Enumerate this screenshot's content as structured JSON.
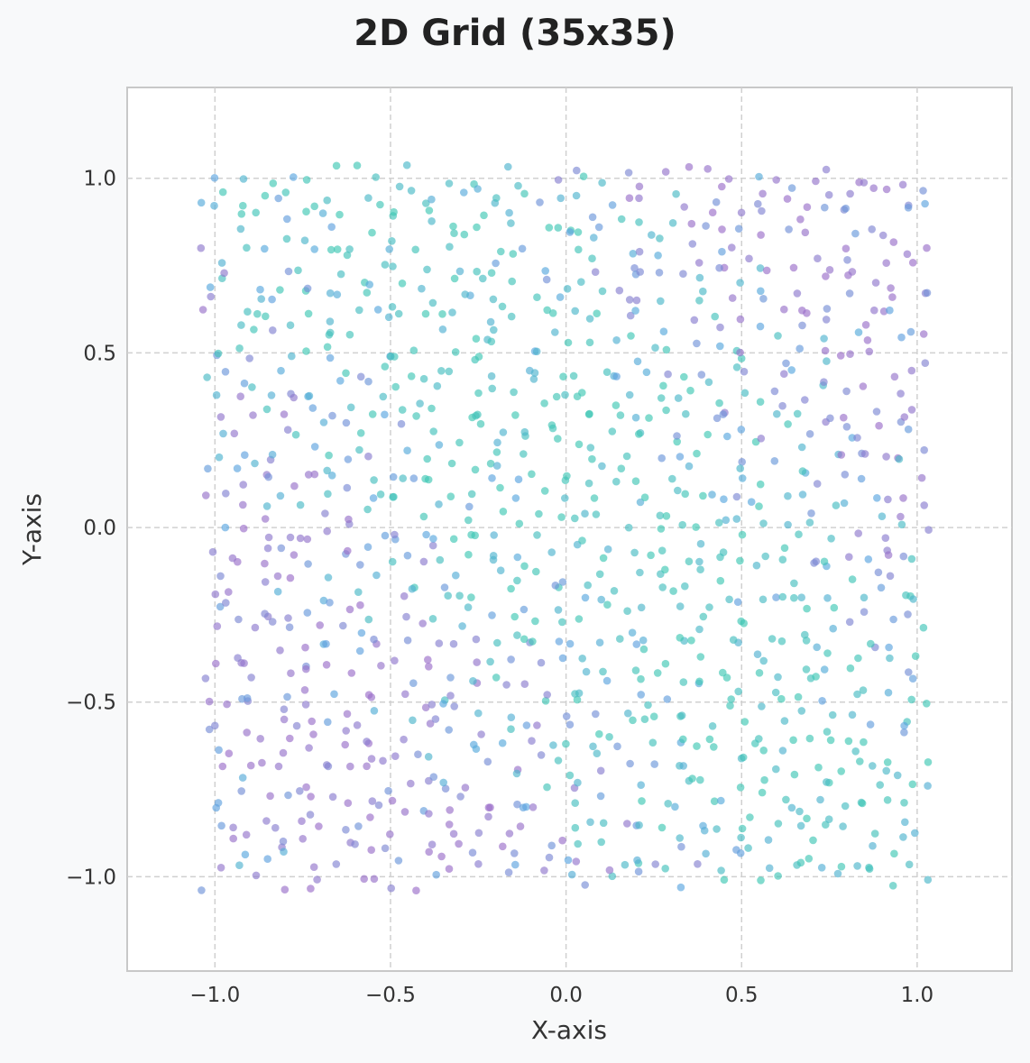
{
  "chart_data": {
    "type": "scatter",
    "title": "2D Grid (35x35)",
    "xlabel": "X-axis",
    "ylabel": "Y-axis",
    "xlim": [
      -1.25,
      1.27
    ],
    "ylim": [
      -1.27,
      1.26
    ],
    "xticks": [
      -1.0,
      -0.5,
      0.0,
      0.5,
      1.0
    ],
    "yticks": [
      -1.0,
      -0.5,
      0.0,
      0.5,
      1.0
    ],
    "xtick_labels": [
      "−1.0",
      "−0.5",
      "0.0",
      "0.5",
      "1.0"
    ],
    "ytick_labels": [
      "−1.0",
      "−0.5",
      "0.0",
      "0.5",
      "1.0"
    ],
    "grid": true,
    "legend": "none",
    "points": {
      "grid_size": [
        35,
        35
      ],
      "x_range": [
        -1.0,
        1.0
      ],
      "y_range": [
        -1.0,
        1.0
      ],
      "jitter": 0.04,
      "count": 1225
    },
    "colors": [
      "#9b6fc9",
      "#5aa6e0",
      "#3fc7b4"
    ],
    "point_alpha": 0.65
  }
}
